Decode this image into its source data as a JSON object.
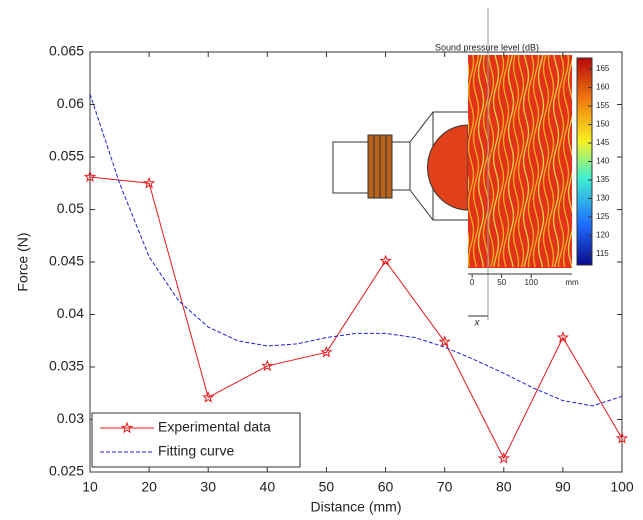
{
  "chart_data": {
    "type": "line",
    "x_label": "Distance (mm)",
    "y_label": "Force (N)",
    "x": [
      10,
      20,
      30,
      40,
      50,
      60,
      70,
      80,
      90,
      100
    ],
    "xlim": [
      10,
      100
    ],
    "xticks": [
      10,
      20,
      30,
      40,
      50,
      60,
      70,
      80,
      90,
      100
    ],
    "ylim": [
      0.025,
      0.065
    ],
    "yticks": [
      0.025,
      0.03,
      0.035,
      0.04,
      0.045,
      0.05,
      0.055,
      0.06,
      0.065
    ],
    "grid": false,
    "legend": "lower left",
    "series": [
      {
        "name": "Experimental data",
        "color": "#e8181c",
        "marker": "star",
        "dash": false,
        "x": [
          10,
          20,
          30,
          40,
          50,
          60,
          70,
          80,
          90,
          100
        ],
        "values": [
          0.0531,
          0.0525,
          0.0321,
          0.0351,
          0.0364,
          0.0451,
          0.0374,
          0.0263,
          0.0378,
          0.0282
        ]
      },
      {
        "name": "Fitting curve",
        "color": "#1f1fd6",
        "marker": "none",
        "dash": true,
        "x": [
          10,
          15,
          20,
          25,
          30,
          35,
          40,
          45,
          50,
          55,
          60,
          65,
          70,
          75,
          80,
          85,
          90,
          95,
          100
        ],
        "values": [
          0.061,
          0.0525,
          0.0455,
          0.0413,
          0.0388,
          0.0375,
          0.037,
          0.0372,
          0.0378,
          0.0382,
          0.0382,
          0.0378,
          0.0369,
          0.0357,
          0.0344,
          0.033,
          0.0318,
          0.0313,
          0.0322
        ]
      }
    ],
    "inset": {
      "title": "Sound pressure level (dB)",
      "colorbar_lim": [
        112,
        168
      ],
      "colorbar_ticks": [
        115,
        120,
        125,
        130,
        135,
        140,
        145,
        150,
        155,
        160,
        165
      ],
      "xlim": [
        -7,
        169
      ],
      "xticks": [
        0,
        50,
        100
      ],
      "unit": "mm",
      "x_label": "x"
    }
  }
}
